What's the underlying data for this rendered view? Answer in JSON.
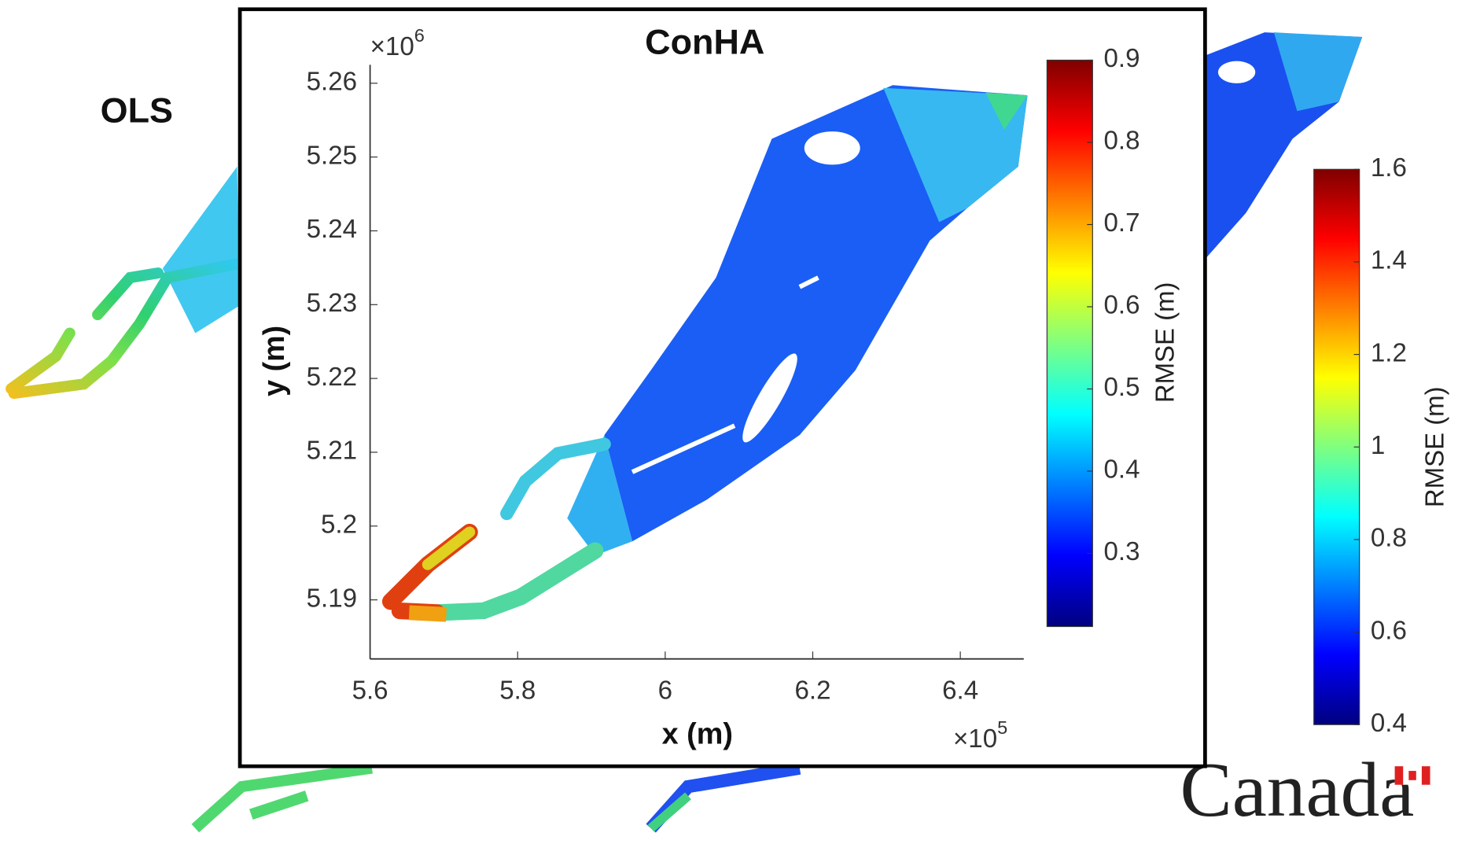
{
  "chart_data": [
    {
      "type": "map",
      "title": "ConHA",
      "x_label": "x (m)",
      "y_label": "y (m)",
      "xlim": [
        5.6,
        6.486
      ],
      "xticks": [
        5.6,
        5.8,
        6,
        6.2,
        6.4
      ],
      "ylim": [
        5.182,
        5.2625
      ],
      "yticks": [
        5.19,
        5.2,
        5.21,
        5.22,
        5.23,
        5.24,
        5.25,
        5.26
      ],
      "x_multiplier": {
        "base": "×10",
        "exponent": "5"
      },
      "y_multiplier": {
        "base": "×10",
        "exponent": "6"
      },
      "colorbar": {
        "label": "RMSE (m)",
        "lim": [
          0.211,
          0.9
        ],
        "ticks": [
          0.3,
          0.4,
          0.5,
          0.6,
          0.7,
          0.8,
          0.9
        ]
      }
    },
    {
      "type": "map",
      "title": "OLS"
    },
    {
      "type": "map",
      "colorbar": {
        "label": "RMSE (m)",
        "lim": [
          0.4,
          1.6
        ],
        "ticks": [
          0.4,
          0.6,
          0.8,
          1,
          1.2,
          1.4,
          1.6
        ]
      }
    }
  ],
  "logo": "Canada"
}
